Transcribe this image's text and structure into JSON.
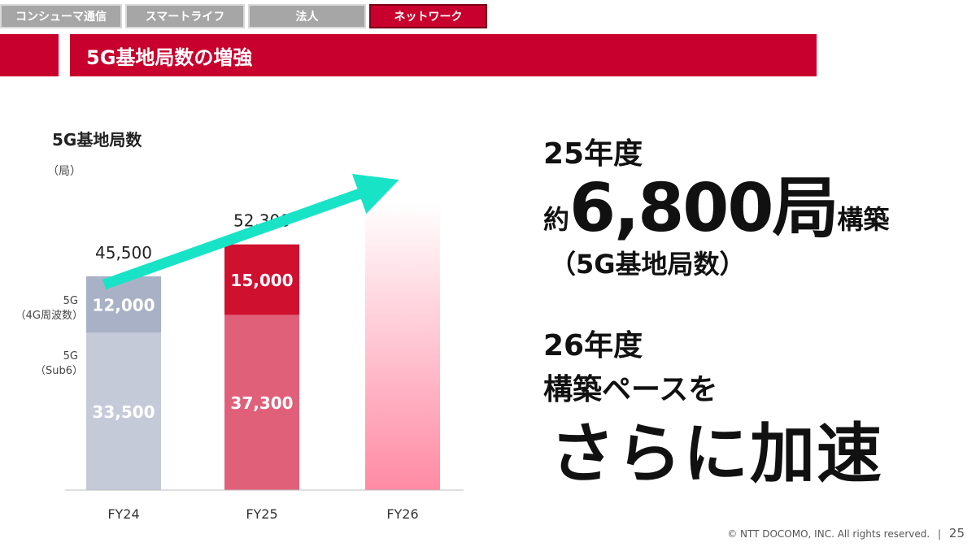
{
  "tabs": [
    {
      "label": "コンシューマ通信",
      "active": false
    },
    {
      "label": "スマートライフ",
      "active": false
    },
    {
      "label": "法人",
      "active": false
    },
    {
      "label": "ネットワーク",
      "active": true
    }
  ],
  "banner": {
    "title": "5G基地局数の増強"
  },
  "colors": {
    "brand_red": "#c8002d",
    "sub6_fy24": "#c4cad8",
    "wave4g_fy24": "#a8b1c5",
    "sub6_fy25": "#e0607a",
    "wave4g_fy25": "#d0102f",
    "fy26_gradient_top": "#ffffff",
    "fy26_gradient_bottom": "#ff8aa4",
    "arrow": "#19e3c7"
  },
  "chart_data": {
    "type": "bar",
    "stacked": true,
    "title": "5G基地局数",
    "unit_label": "（局）",
    "categories": [
      "FY24",
      "FY25",
      "FY26"
    ],
    "series": [
      {
        "name": "5G（Sub6）",
        "values": [
          33500,
          37300,
          null
        ]
      },
      {
        "name": "5G（4G周波数）",
        "values": [
          12000,
          15000,
          null
        ]
      }
    ],
    "totals": [
      45500,
      52300,
      null
    ],
    "value_labels": {
      "series0": [
        "33,500",
        "37,300",
        ""
      ],
      "series1": [
        "12,000",
        "15,000",
        ""
      ],
      "totals": [
        "45,500",
        "52,300",
        ""
      ]
    },
    "fy26_shape": "gradient bar, no value shown",
    "legend_labels": [
      {
        "line1": "5G",
        "line2": "（Sub6）"
      },
      {
        "line1": "5G",
        "line2": "（4G周波数）"
      }
    ],
    "trend_arrow": true,
    "ylim": [
      0,
      75000
    ],
    "grid": false
  },
  "right": {
    "fy25_heading": "25年度",
    "approx_prefix": "約",
    "big_number": "6,800局",
    "build_suffix": "構築",
    "sub_note": "（5G基地局数）",
    "fy26_heading": "26年度",
    "pace_line": "構築ペースを",
    "accelerate": "さらに加速"
  },
  "footer": {
    "copyright": "© NTT DOCOMO, INC.  All rights reserved.",
    "separator": "|",
    "page": "25"
  }
}
